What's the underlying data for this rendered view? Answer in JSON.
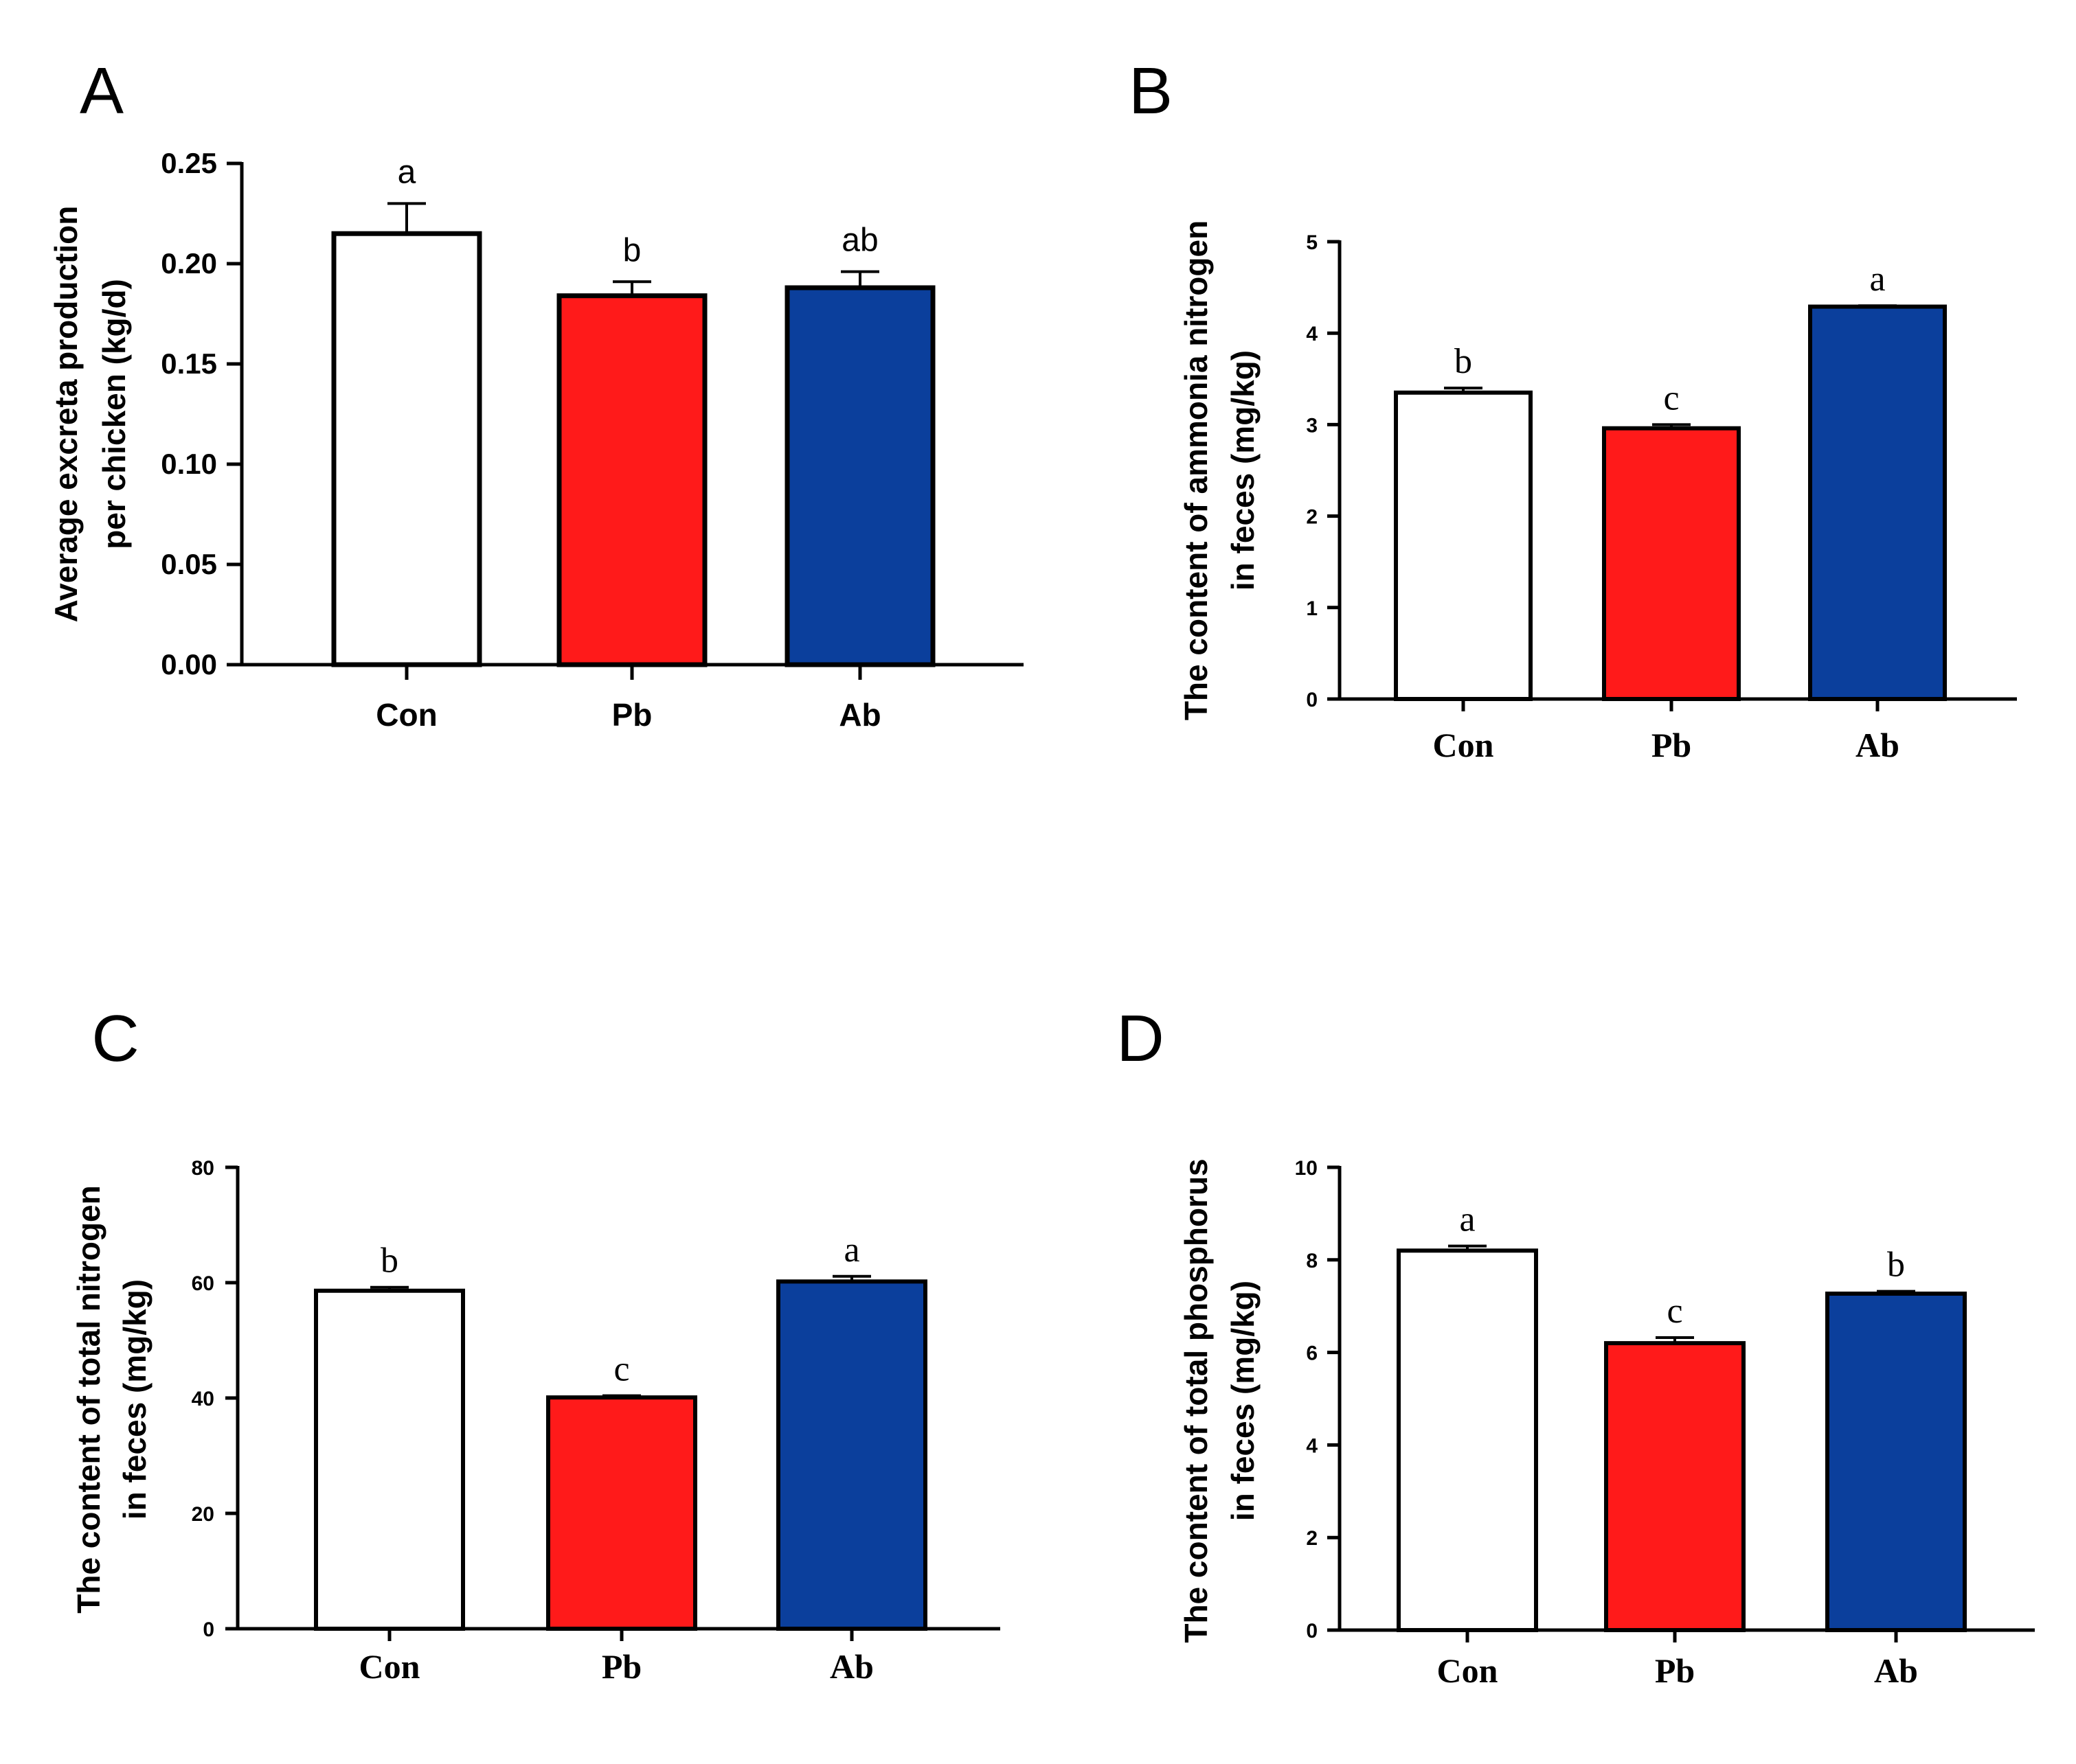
{
  "chart_data": [
    {
      "panel": "A",
      "type": "bar",
      "categories": [
        "Con",
        "Pb",
        "Ab"
      ],
      "values": [
        0.215,
        0.184,
        0.188
      ],
      "errors": [
        0.015,
        0.007,
        0.008
      ],
      "significance": [
        "a",
        "b",
        "ab"
      ],
      "colors": [
        "#ffffff",
        "#ff1a1a",
        "#0b3f9c"
      ],
      "ylabel_lines": [
        "Average excreta production",
        "per chicken (kg/d)"
      ],
      "yticks": [
        "0.00",
        "0.05",
        "0.10",
        "0.15",
        "0.20",
        "0.25"
      ],
      "ylim": [
        0,
        0.25
      ]
    },
    {
      "panel": "B",
      "type": "bar",
      "categories": [
        "Con",
        "Pb",
        "Ab"
      ],
      "values": [
        3.35,
        2.96,
        4.29
      ],
      "errors": [
        0.05,
        0.04,
        0.01
      ],
      "significance": [
        "b",
        "c",
        "a"
      ],
      "colors": [
        "#ffffff",
        "#ff1a1a",
        "#0b3f9c"
      ],
      "ylabel_lines": [
        "The content of ammonia nitrogen",
        "in feces (mg/kg)"
      ],
      "yticks": [
        "0",
        "1",
        "2",
        "3",
        "4",
        "5"
      ],
      "ylim": [
        0,
        5
      ]
    },
    {
      "panel": "C",
      "type": "bar",
      "categories": [
        "Con",
        "Pb",
        "Ab"
      ],
      "values": [
        58.6,
        40.1,
        60.2
      ],
      "errors": [
        0.6,
        0.3,
        0.9
      ],
      "significance": [
        "b",
        "c",
        "a"
      ],
      "colors": [
        "#ffffff",
        "#ff1a1a",
        "#0b3f9c"
      ],
      "ylabel_lines": [
        "The content of total nitrogen",
        "in feces (mg/kg)"
      ],
      "yticks": [
        "0",
        "20",
        "40",
        "60",
        "80"
      ],
      "ylim": [
        0,
        80
      ]
    },
    {
      "panel": "D",
      "type": "bar",
      "categories": [
        "Con",
        "Pb",
        "Ab"
      ],
      "values": [
        8.2,
        6.2,
        7.27
      ],
      "errors": [
        0.1,
        0.12,
        0.05
      ],
      "significance": [
        "a",
        "c",
        "b"
      ],
      "colors": [
        "#ffffff",
        "#ff1a1a",
        "#0b3f9c"
      ],
      "ylabel_lines": [
        "The content of total phosphorus",
        "in feces (mg/kg)"
      ],
      "yticks": [
        "0",
        "2",
        "4",
        "6",
        "8",
        "10"
      ],
      "ylim": [
        0,
        10
      ]
    }
  ]
}
